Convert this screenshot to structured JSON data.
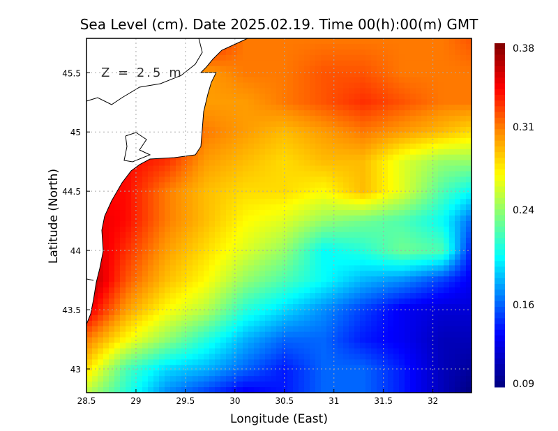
{
  "chart_data": {
    "type": "heatmap",
    "title": "Sea Level (cm). Date 2025.02.19. Time 00(h):00(m) GMT",
    "annotation": "Z = 2.5 m",
    "xlabel": "Longitude (East)",
    "ylabel": "Latitude (North)",
    "xlim": [
      28.5,
      32.39
    ],
    "ylim": [
      42.8,
      45.79
    ],
    "xticks": [
      28.5,
      29,
      29.5,
      30,
      30.5,
      31,
      31.5,
      32
    ],
    "xtick_labels": [
      "28.5",
      "29",
      "29.5",
      "30",
      "30.5",
      "31",
      "31.5",
      "32"
    ],
    "yticks": [
      43,
      43.5,
      44,
      44.5,
      45,
      45.5
    ],
    "ytick_labels": [
      "43",
      "43.5",
      "44",
      "44.5",
      "45",
      "45.5"
    ],
    "grid": true,
    "colorbar": {
      "range": [
        0.09,
        0.38
      ],
      "ticks": [
        0.38,
        0.31,
        0.24,
        0.16,
        0.09
      ],
      "tick_labels": [
        "0.38",
        "0.31",
        "0.24",
        "0.16",
        "0.09"
      ],
      "colormap": "jet",
      "placement": "right"
    },
    "x": [
      28.5,
      28.9,
      29.3,
      29.7,
      30.1,
      30.5,
      30.9,
      31.3,
      31.7,
      32.1,
      32.39
    ],
    "y": [
      45.79,
      45.5,
      45.25,
      45.0,
      44.75,
      44.5,
      44.25,
      44.0,
      43.75,
      43.5,
      43.25,
      43.0,
      42.8
    ],
    "values": [
      [
        null,
        null,
        null,
        null,
        0.31,
        0.31,
        0.31,
        0.31,
        0.31,
        0.31,
        0.32
      ],
      [
        null,
        null,
        null,
        0.3,
        0.31,
        0.31,
        0.32,
        0.32,
        0.31,
        0.31,
        0.31
      ],
      [
        null,
        null,
        null,
        0.3,
        0.3,
        0.31,
        0.32,
        0.33,
        0.32,
        0.31,
        0.31
      ],
      [
        null,
        null,
        null,
        0.31,
        0.3,
        0.29,
        0.3,
        0.31,
        0.3,
        0.29,
        0.28
      ],
      [
        null,
        0.34,
        0.33,
        0.3,
        0.29,
        0.28,
        0.29,
        0.29,
        0.26,
        0.24,
        0.24
      ],
      [
        null,
        0.34,
        0.31,
        0.29,
        0.28,
        0.28,
        0.27,
        0.29,
        0.26,
        0.22,
        0.2
      ],
      [
        0.35,
        0.34,
        0.31,
        0.29,
        0.27,
        0.26,
        0.24,
        0.23,
        0.22,
        0.2,
        0.16
      ],
      [
        0.36,
        0.33,
        0.3,
        0.28,
        0.26,
        0.24,
        0.2,
        0.21,
        0.23,
        0.22,
        0.14
      ],
      [
        0.37,
        0.32,
        0.29,
        0.27,
        0.24,
        0.22,
        0.2,
        0.18,
        0.17,
        0.15,
        0.13
      ],
      [
        0.35,
        0.3,
        0.27,
        0.25,
        0.21,
        0.19,
        0.17,
        0.15,
        0.13,
        0.12,
        0.12
      ],
      [
        0.31,
        0.27,
        0.24,
        0.21,
        0.18,
        0.16,
        0.16,
        0.14,
        0.13,
        0.11,
        0.11
      ],
      [
        0.28,
        0.22,
        0.19,
        0.18,
        0.16,
        0.14,
        0.16,
        0.16,
        0.14,
        0.11,
        0.1
      ],
      [
        0.25,
        0.21,
        0.17,
        0.15,
        0.13,
        0.14,
        0.16,
        0.16,
        0.14,
        0.11,
        0.09
      ]
    ]
  }
}
